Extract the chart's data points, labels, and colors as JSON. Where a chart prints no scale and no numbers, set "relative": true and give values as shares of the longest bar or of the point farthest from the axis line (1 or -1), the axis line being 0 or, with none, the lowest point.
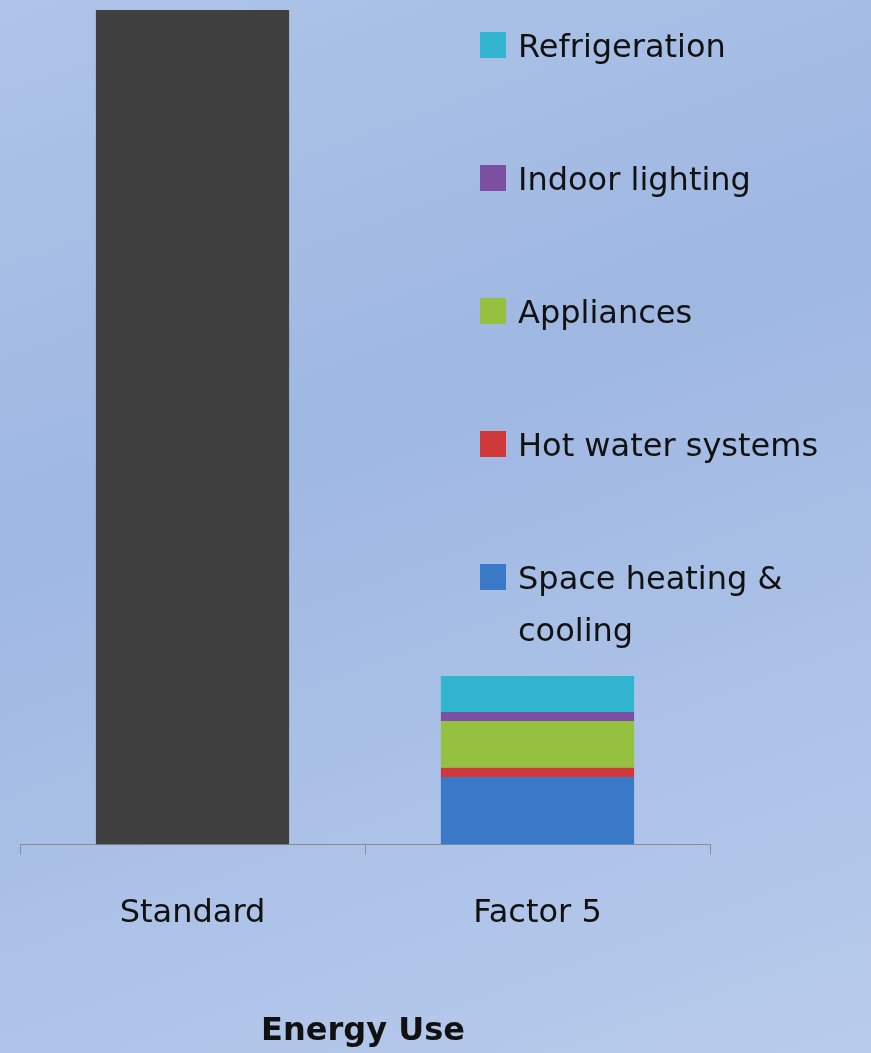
{
  "chart_data": {
    "type": "bar",
    "stacked": true,
    "relative": true,
    "xlabel": "Energy Use",
    "categories": [
      "Standard",
      "Factor 5"
    ],
    "legend": "right",
    "series": [
      {
        "color": "#404040",
        "values": [
          1,
          null
        ]
      },
      {
        "name": "Space heating & cooling",
        "color": "#3a78c8",
        "values": [
          null,
          0.081
        ]
      },
      {
        "name": "Hot water systems",
        "color": "#d0393a",
        "values": [
          null,
          0.011
        ]
      },
      {
        "name": "Appliances",
        "color": "#96c040",
        "values": [
          null,
          0.056
        ]
      },
      {
        "name": "Indoor lighting",
        "color": "#7b50a3",
        "values": [
          null,
          0.011
        ]
      },
      {
        "name": "Refrigeration",
        "color": "#30b4d0",
        "values": [
          null,
          0.043
        ]
      }
    ]
  }
}
